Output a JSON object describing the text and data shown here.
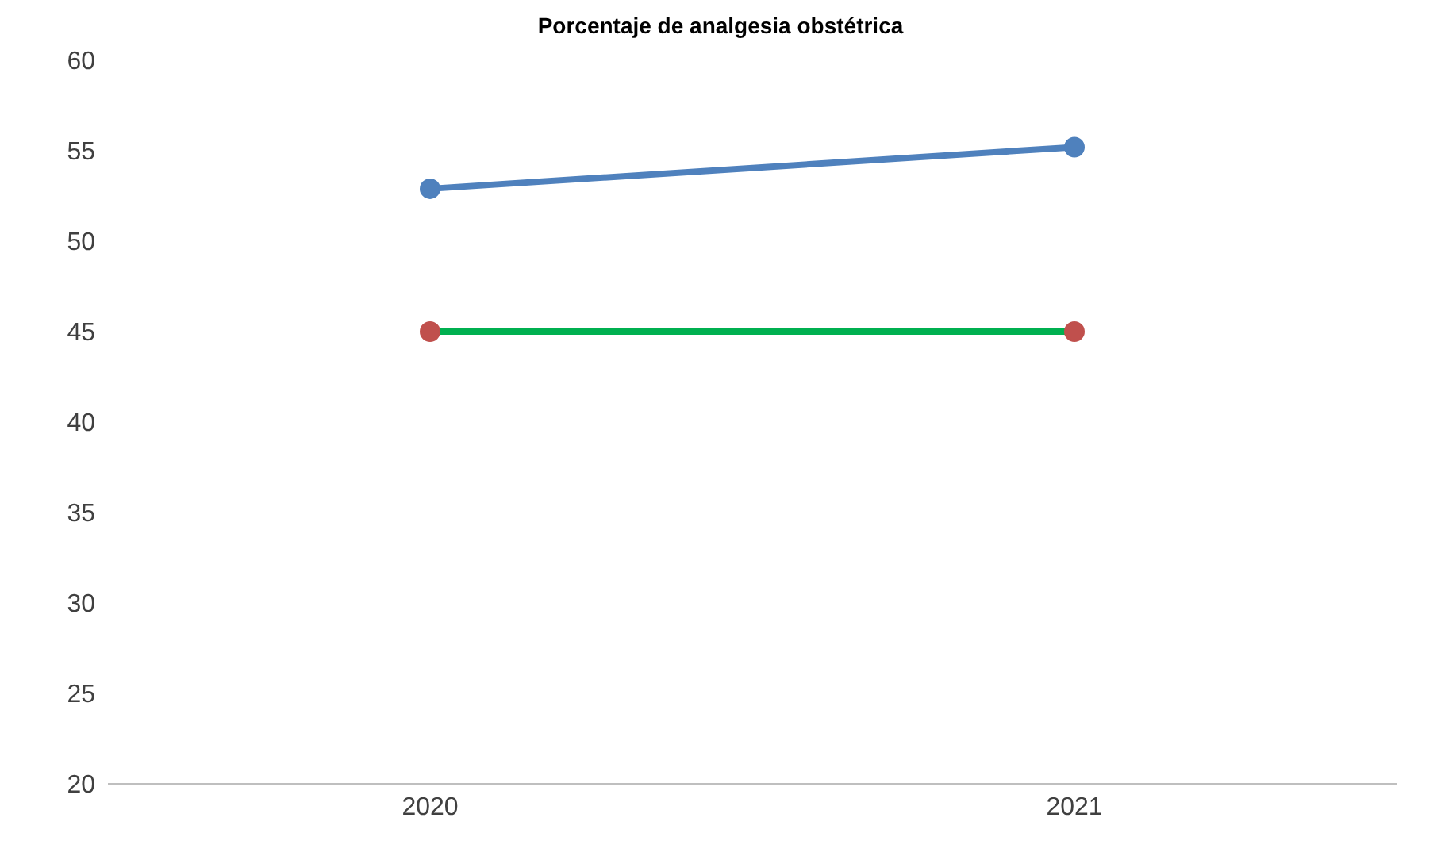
{
  "chart_data": {
    "type": "line",
    "title": "Porcentaje de analgesia obstétrica",
    "categories": [
      "2020",
      "2021"
    ],
    "series": [
      {
        "color": "#4f81bd",
        "values": [
          52.9,
          55.2
        ]
      },
      {
        "color": "#00b050",
        "values": [
          45,
          45
        ],
        "marker": "none"
      },
      {
        "type": "scatter",
        "color": "#c0504d",
        "values": [
          45,
          45
        ]
      }
    ],
    "ylim": [
      20,
      60
    ],
    "yticks": [
      20,
      25,
      30,
      35,
      40,
      45,
      50,
      55,
      60
    ],
    "grid": false,
    "legend": false,
    "marker": "circle"
  }
}
